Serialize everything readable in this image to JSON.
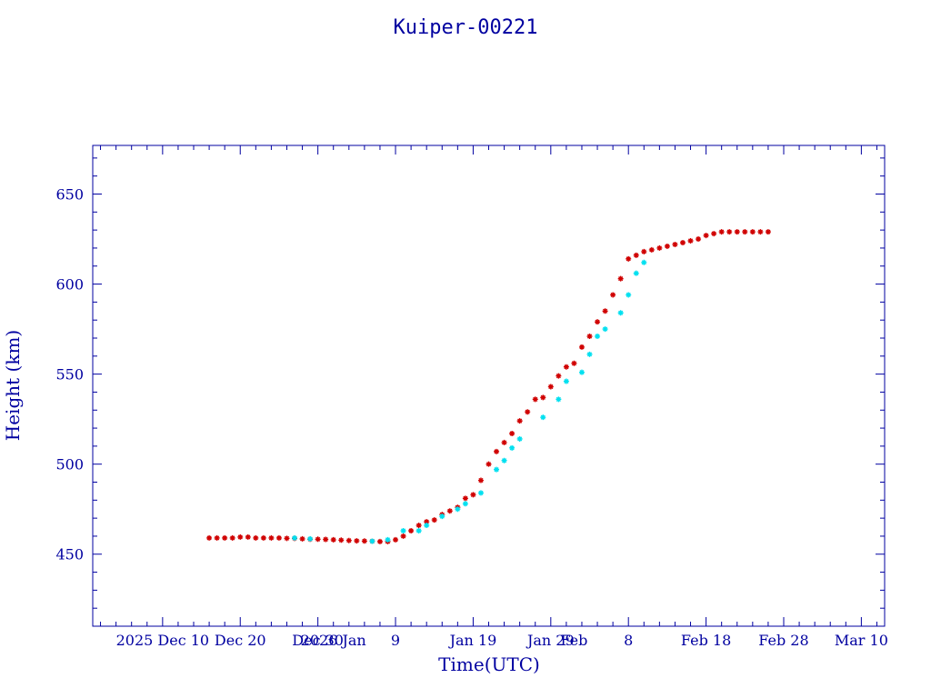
{
  "chart_data": {
    "type": "scatter",
    "title": "Kuiper-00221",
    "xlabel": "Time(UTC)",
    "ylabel": "Height (km)",
    "xlim": [
      "2025-12-01",
      "2026-03-13"
    ],
    "ylim": [
      410,
      677
    ],
    "grid": false,
    "x_tick_labels": [
      "2025 Dec 10",
      "Dec 20",
      "Dec 30",
      "2026 Jan",
      "9",
      "Jan 19",
      "Jan 29",
      "Feb",
      "8",
      "Feb 18",
      "Feb 28",
      "Mar 10"
    ],
    "x_tick_dates": [
      "2025-12-10",
      "2025-12-20",
      "2025-12-30",
      "2026-01-01",
      "2026-01-09",
      "2026-01-19",
      "2026-01-29",
      "2026-02-01",
      "2026-02-08",
      "2026-02-18",
      "2026-02-28",
      "2026-03-10"
    ],
    "y_ticks": [
      450,
      500,
      550,
      600,
      650
    ],
    "y_minor_step": 10,
    "series": [
      {
        "color": "#d00000",
        "marker": "asterisk",
        "x": [
          "2025-12-16",
          "2025-12-17",
          "2025-12-18",
          "2025-12-19",
          "2025-12-20",
          "2025-12-21",
          "2025-12-22",
          "2025-12-23",
          "2025-12-24",
          "2025-12-25",
          "2025-12-26",
          "2025-12-27",
          "2025-12-28",
          "2025-12-29",
          "2025-12-30",
          "2025-12-31",
          "2026-01-01",
          "2026-01-02",
          "2026-01-03",
          "2026-01-04",
          "2026-01-05",
          "2026-01-06",
          "2026-01-07",
          "2026-01-08",
          "2026-01-09",
          "2026-01-10",
          "2026-01-11",
          "2026-01-12",
          "2026-01-13",
          "2026-01-14",
          "2026-01-15",
          "2026-01-16",
          "2026-01-17",
          "2026-01-18",
          "2026-01-19",
          "2026-01-20",
          "2026-01-21",
          "2026-01-22",
          "2026-01-23",
          "2026-01-24",
          "2026-01-25",
          "2026-01-26",
          "2026-01-27",
          "2026-01-28",
          "2026-01-29",
          "2026-01-30",
          "2026-01-31",
          "2026-02-01",
          "2026-02-02",
          "2026-02-03",
          "2026-02-04",
          "2026-02-05",
          "2026-02-06",
          "2026-02-07",
          "2026-02-08",
          "2026-02-09",
          "2026-02-10",
          "2026-02-11",
          "2026-02-12",
          "2026-02-13",
          "2026-02-14",
          "2026-02-15",
          "2026-02-16",
          "2026-02-17",
          "2026-02-18",
          "2026-02-19",
          "2026-02-20",
          "2026-02-21",
          "2026-02-22",
          "2026-02-23",
          "2026-02-24",
          "2026-02-25",
          "2026-02-26"
        ],
        "y": [
          459,
          459,
          459,
          459,
          459.5,
          459.5,
          459,
          459,
          459,
          459,
          458.8,
          458.8,
          458.5,
          458.3,
          458.3,
          458.2,
          458,
          457.8,
          457.6,
          457.4,
          457.3,
          457.2,
          457,
          457,
          458,
          460,
          463,
          466,
          468,
          469,
          472,
          474,
          476,
          481,
          483,
          491,
          500,
          507,
          512,
          517,
          524,
          529,
          536,
          537,
          543,
          549,
          554,
          556,
          565,
          571,
          579,
          585,
          594,
          603,
          614,
          616,
          618,
          619,
          620,
          621,
          622,
          623,
          624,
          625,
          627,
          628,
          629,
          629,
          629,
          629,
          629,
          629,
          629
        ]
      },
      {
        "color": "#00e0f0",
        "marker": "asterisk",
        "x": [
          "2025-12-27",
          "2025-12-29",
          "2026-01-06",
          "2026-01-08",
          "2026-01-10",
          "2026-01-12",
          "2026-01-13",
          "2026-01-15",
          "2026-01-17",
          "2026-01-18",
          "2026-01-20",
          "2026-01-22",
          "2026-01-23",
          "2026-01-24",
          "2026-01-25",
          "2026-01-28",
          "2026-01-30",
          "2026-01-31",
          "2026-02-02",
          "2026-02-03",
          "2026-02-04",
          "2026-02-05",
          "2026-02-07",
          "2026-02-08",
          "2026-02-09",
          "2026-02-10"
        ],
        "y": [
          459,
          458.5,
          457.2,
          458,
          463,
          463,
          466,
          471,
          475,
          478,
          484,
          497,
          502,
          509,
          514,
          526,
          536,
          546,
          551,
          561,
          571,
          575,
          584,
          594,
          606,
          612
        ]
      }
    ]
  }
}
